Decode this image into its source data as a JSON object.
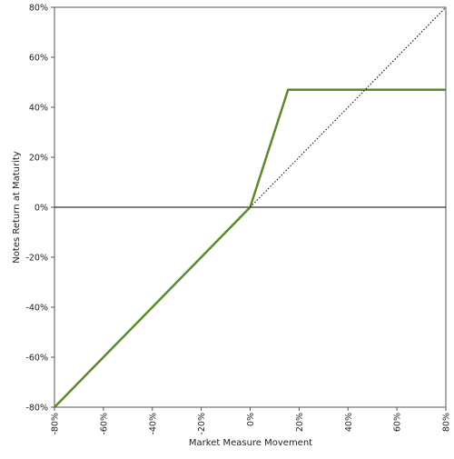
{
  "chart_data": {
    "type": "line",
    "title": "",
    "xlabel": "Market Measure Movement",
    "ylabel": "Notes Return at Maturity",
    "xlim": [
      -80,
      80
    ],
    "ylim": [
      -80,
      80
    ],
    "x_ticks": [
      -80,
      -60,
      -40,
      -20,
      0,
      20,
      40,
      60,
      80
    ],
    "y_ticks": [
      80,
      60,
      40,
      20,
      0,
      -20,
      -40,
      -60,
      -80
    ],
    "x_tick_labels": [
      "-80%",
      "-60%",
      "-40%",
      "-20%",
      "0%",
      "20%",
      "40%",
      "60%",
      "80%"
    ],
    "y_tick_labels": [
      "80%",
      "60%",
      "40%",
      "20%",
      "0%",
      "-20%",
      "-40%",
      "-60%",
      "-80%"
    ],
    "grid": false,
    "series": [
      {
        "style": "solid",
        "color": "#5a8a2a",
        "points": [
          [
            -80,
            -80
          ],
          [
            0,
            0
          ],
          [
            15.5,
            47
          ],
          [
            80,
            47
          ]
        ]
      },
      {
        "style": "dotted",
        "color": "#000000",
        "points": [
          [
            0,
            0
          ],
          [
            80,
            80
          ]
        ]
      }
    ],
    "reference_lines": [
      {
        "axis": "y",
        "value": 0,
        "color": "#000000"
      }
    ]
  }
}
